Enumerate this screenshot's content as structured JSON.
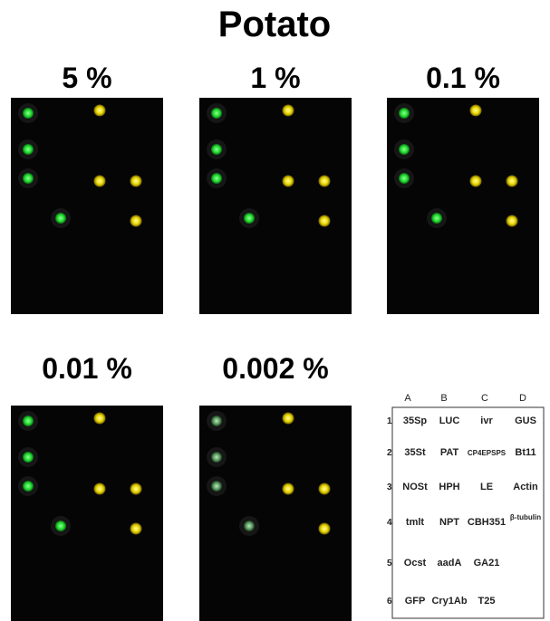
{
  "title": "Potato",
  "panels": [
    {
      "label": "5 %"
    },
    {
      "label": "1 %"
    },
    {
      "label": "0.1 %"
    },
    {
      "label": "0.01 %"
    },
    {
      "label": "0.002 %"
    }
  ],
  "legend": {
    "columns": [
      "A",
      "B",
      "C",
      "D"
    ],
    "rows": [
      {
        "number": "1",
        "cells": [
          "35Sp",
          "LUC",
          "ivr",
          "GUS"
        ]
      },
      {
        "number": "2",
        "cells": [
          "35St",
          "PAT",
          "CP4EPSPS",
          "Bt11"
        ]
      },
      {
        "number": "3",
        "cells": [
          "NOSt",
          "HPH",
          "LE",
          "Actin"
        ]
      },
      {
        "number": "4",
        "cells": [
          "tmlt",
          "NPT",
          "CBH351",
          "β-tubulin"
        ]
      },
      {
        "number": "5",
        "cells": [
          "Ocst",
          "aadA",
          "GA21",
          null
        ]
      },
      {
        "number": "6",
        "cells": [
          "GFP",
          "Cry1Ab",
          "T25",
          null
        ]
      }
    ]
  }
}
